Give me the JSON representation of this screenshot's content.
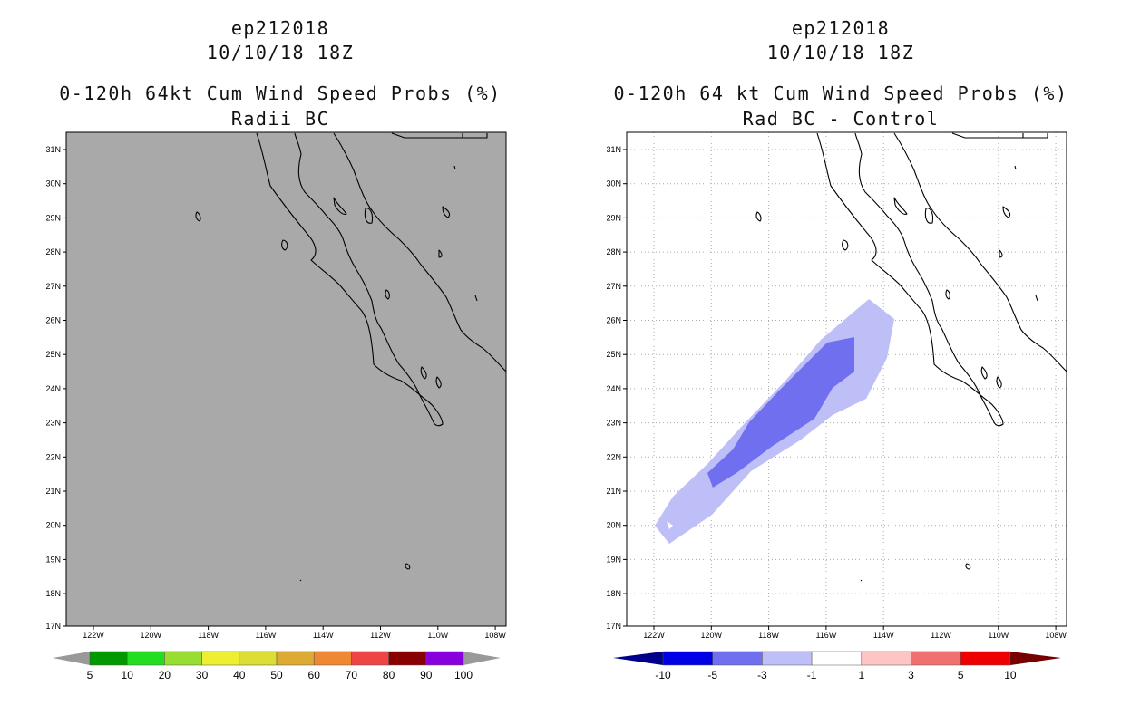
{
  "panels": [
    {
      "title_lines": [
        "ep212018",
        "10/10/18 18Z",
        "0-120h 64kt Cum Wind Speed Probs (%)",
        "Radii BC"
      ],
      "background_color": "#a9a9a9",
      "gridlines": false,
      "colorbar": {
        "colors": [
          "#009900",
          "#22dd22",
          "#99dd33",
          "#eeee33",
          "#dddd33",
          "#ddaa33",
          "#ee8833",
          "#ee4444",
          "#880000",
          "#8800dd"
        ],
        "labels": [
          "5",
          "10",
          "20",
          "30",
          "40",
          "50",
          "60",
          "70",
          "80",
          "90",
          "100"
        ]
      }
    },
    {
      "title_lines": [
        "ep212018",
        "10/10/18 18Z",
        "0-120h 64 kt Cum Wind Speed Probs (%)",
        "Rad BC - Control"
      ],
      "background_color": "#ffffff",
      "gridlines": true,
      "colorbar": {
        "colors": [
          "#0000e6",
          "#6f6ff0",
          "#bfbff7",
          "#ffffff",
          "#ffc4c4",
          "#f07070",
          "#ee0000"
        ],
        "end_colors": [
          "#000088",
          "#770000"
        ],
        "labels": [
          "-10",
          "-5",
          "-3",
          "-1",
          "1",
          "3",
          "5",
          "10"
        ]
      }
    }
  ],
  "axes": {
    "lat_ticks": [
      "31N",
      "30N",
      "29N",
      "28N",
      "27N",
      "26N",
      "25N",
      "24N",
      "23N",
      "22N",
      "21N",
      "20N",
      "19N",
      "18N",
      "17N"
    ],
    "lon_ticks": [
      "122W",
      "120W",
      "118W",
      "116W",
      "114W",
      "112W",
      "110W",
      "108W"
    ]
  }
}
